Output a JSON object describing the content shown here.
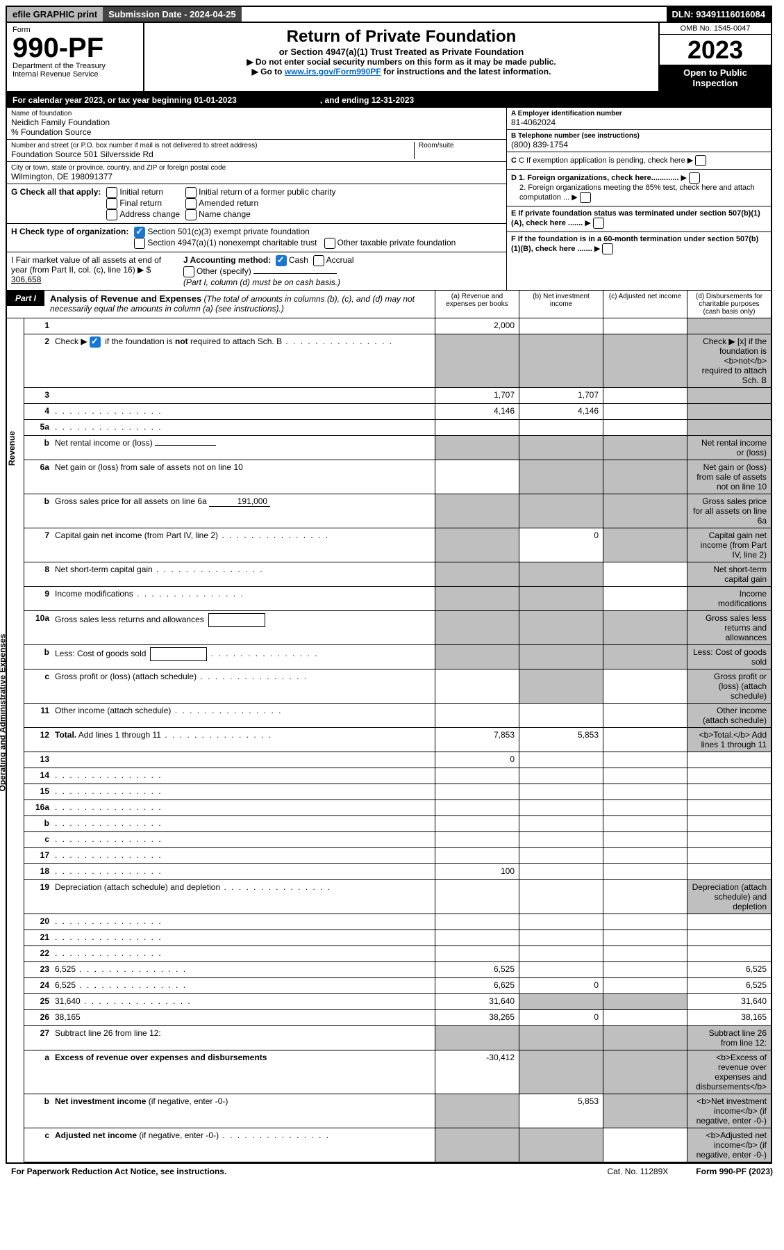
{
  "topbar": {
    "efile": "efile GRAPHIC print",
    "submission": "Submission Date - 2024-04-25",
    "dln": "DLN: 93491116016084"
  },
  "header": {
    "form_label": "Form",
    "form_number": "990-PF",
    "dept1": "Department of the Treasury",
    "dept2": "Internal Revenue Service",
    "title": "Return of Private Foundation",
    "subtitle": "or Section 4947(a)(1) Trust Treated as Private Foundation",
    "note1": "▶ Do not enter social security numbers on this form as it may be made public.",
    "note2_pre": "▶ Go to ",
    "note2_link": "www.irs.gov/Form990PF",
    "note2_post": " for instructions and the latest information.",
    "omb": "OMB No. 1545-0047",
    "year": "2023",
    "inspect": "Open to Public Inspection"
  },
  "calyear": {
    "text1": "For calendar year 2023, or tax year beginning 01-01-2023",
    "text2": ", and ending 12-31-2023"
  },
  "ident": {
    "name_lbl": "Name of foundation",
    "name": "Neidich Family Foundation",
    "care_lbl": "% Foundation Source",
    "addr_lbl": "Number and street (or P.O. box number if mail is not delivered to street address)",
    "addr": "Foundation Source 501 Silversside Rd",
    "room_lbl": "Room/suite",
    "city_lbl": "City or town, state or province, country, and ZIP or foreign postal code",
    "city": "Wilmington, DE  198091377",
    "a_lbl": "A Employer identification number",
    "a_val": "81-4062024",
    "b_lbl": "B Telephone number (see instructions)",
    "b_val": "(800) 839-1754",
    "c_lbl": "C If exemption application is pending, check here",
    "d1_lbl": "D 1. Foreign organizations, check here.............",
    "d2_lbl": "2. Foreign organizations meeting the 85% test, check here and attach computation ...",
    "e_lbl": "E  If private foundation status was terminated under section 507(b)(1)(A), check here .......",
    "f_lbl": "F  If the foundation is in a 60-month termination under section 507(b)(1)(B), check here .......",
    "g_lbl": "G Check all that apply:",
    "g_opts": [
      "Initial return",
      "Final return",
      "Address change",
      "Initial return of a former public charity",
      "Amended return",
      "Name change"
    ],
    "h_lbl": "H Check type of organization:",
    "h_opts": [
      "Section 501(c)(3) exempt private foundation",
      "Section 4947(a)(1) nonexempt charitable trust",
      "Other taxable private foundation"
    ],
    "i_lbl": "I Fair market value of all assets at end of year (from Part II, col. (c), line 16) ▶ $",
    "i_val": "306,658",
    "j_lbl": "J Accounting method:",
    "j_opts": [
      "Cash",
      "Accrual",
      "Other (specify)"
    ],
    "j_note": "(Part I, column (d) must be on cash basis.)"
  },
  "part1": {
    "tag": "Part I",
    "title": "Analysis of Revenue and Expenses",
    "title_note": "(The total of amounts in columns (b), (c), and (d) may not necessarily equal the amounts in column (a) (see instructions).)",
    "cols": {
      "a": "(a) Revenue and expenses per books",
      "b": "(b) Net investment income",
      "c": "(c) Adjusted net income",
      "d": "(d) Disbursements for charitable purposes (cash basis only)"
    }
  },
  "vlabels": {
    "rev": "Revenue",
    "exp": "Operating and Administrative Expenses"
  },
  "lines": [
    {
      "n": "1",
      "d": "",
      "a": "2,000",
      "b": "",
      "c": "",
      "shade_d": true
    },
    {
      "n": "2",
      "d": "Check ▶ [x] if the foundation is <b>not</b> required to attach Sch. B",
      "dots": true,
      "shade_all": true,
      "checked": true
    },
    {
      "n": "3",
      "d": "",
      "a": "1,707",
      "b": "1,707",
      "c": "",
      "shade_d": true
    },
    {
      "n": "4",
      "d": "",
      "dots": true,
      "a": "4,146",
      "b": "4,146",
      "c": "",
      "shade_d": true
    },
    {
      "n": "5a",
      "d": "",
      "dots": true,
      "a": "",
      "b": "",
      "c": "",
      "shade_d": true
    },
    {
      "n": "b",
      "d": "Net rental income or (loss)",
      "inline": "",
      "shade_abcd": true
    },
    {
      "n": "6a",
      "d": "Net gain or (loss) from sale of assets not on line 10",
      "a": "",
      "shade_bcd": true
    },
    {
      "n": "b",
      "d": "Gross sales price for all assets on line 6a",
      "inline": "191,000",
      "shade_abcd": true
    },
    {
      "n": "7",
      "d": "Capital gain net income (from Part IV, line 2)",
      "dots": true,
      "b": "0",
      "shade_a": true,
      "shade_cd": true
    },
    {
      "n": "8",
      "d": "Net short-term capital gain",
      "dots": true,
      "c": "",
      "shade_ab": true,
      "shade_d": true
    },
    {
      "n": "9",
      "d": "Income modifications",
      "dots": true,
      "c": "",
      "shade_ab": true,
      "shade_d": true
    },
    {
      "n": "10a",
      "d": "Gross sales less returns and allowances",
      "box": true,
      "shade_abcd": true
    },
    {
      "n": "b",
      "d": "Less: Cost of goods sold",
      "dots": true,
      "box": true,
      "shade_abcd": true
    },
    {
      "n": "c",
      "d": "Gross profit or (loss) (attach schedule)",
      "dots": true,
      "a": "",
      "c": "",
      "shade_b": true,
      "shade_d": true
    },
    {
      "n": "11",
      "d": "Other income (attach schedule)",
      "dots": true,
      "a": "",
      "b": "",
      "c": "",
      "shade_d": true
    },
    {
      "n": "12",
      "d": "<b>Total.</b> Add lines 1 through 11",
      "dots": true,
      "a": "7,853",
      "b": "5,853",
      "c": "",
      "shade_d": true,
      "bold": true
    },
    {
      "n": "13",
      "d": "",
      "a": "0",
      "b": "",
      "c": ""
    },
    {
      "n": "14",
      "d": "",
      "dots": true,
      "a": "",
      "b": "",
      "c": ""
    },
    {
      "n": "15",
      "d": "",
      "dots": true,
      "a": "",
      "b": "",
      "c": ""
    },
    {
      "n": "16a",
      "d": "",
      "dots": true,
      "a": "",
      "b": "",
      "c": ""
    },
    {
      "n": "b",
      "d": "",
      "dots": true,
      "a": "",
      "b": "",
      "c": ""
    },
    {
      "n": "c",
      "d": "",
      "dots": true,
      "a": "",
      "b": "",
      "c": ""
    },
    {
      "n": "17",
      "d": "",
      "dots": true,
      "a": "",
      "b": "",
      "c": ""
    },
    {
      "n": "18",
      "d": "",
      "dots": true,
      "a": "100",
      "b": "",
      "c": ""
    },
    {
      "n": "19",
      "d": "Depreciation (attach schedule) and depletion",
      "dots": true,
      "a": "",
      "b": "",
      "c": "",
      "shade_d": true
    },
    {
      "n": "20",
      "d": "",
      "dots": true,
      "a": "",
      "b": "",
      "c": ""
    },
    {
      "n": "21",
      "d": "",
      "dots": true,
      "a": "",
      "b": "",
      "c": ""
    },
    {
      "n": "22",
      "d": "",
      "dots": true,
      "a": "",
      "b": "",
      "c": ""
    },
    {
      "n": "23",
      "d": "6,525",
      "dots": true,
      "a": "6,525",
      "b": "",
      "c": ""
    },
    {
      "n": "24",
      "d": "6,525",
      "dots": true,
      "a": "6,625",
      "b": "0",
      "c": ""
    },
    {
      "n": "25",
      "d": "31,640",
      "dots": true,
      "a": "31,640",
      "shade_bc": true
    },
    {
      "n": "26",
      "d": "38,165",
      "a": "38,265",
      "b": "0",
      "c": ""
    },
    {
      "n": "27",
      "d": "Subtract line 26 from line 12:",
      "shade_abcd": true
    },
    {
      "n": "a",
      "d": "<b>Excess of revenue over expenses and disbursements</b>",
      "a": "-30,412",
      "shade_bcd": true
    },
    {
      "n": "b",
      "d": "<b>Net investment income</b> (if negative, enter -0-)",
      "b": "5,853",
      "shade_a": true,
      "shade_cd": true
    },
    {
      "n": "c",
      "d": "<b>Adjusted net income</b> (if negative, enter -0-)",
      "dots": true,
      "c": "",
      "shade_ab": true,
      "shade_d": true
    }
  ],
  "footer": {
    "left": "For Paperwork Reduction Act Notice, see instructions.",
    "mid": "Cat. No. 11289X",
    "right": "Form 990-PF (2023)"
  }
}
